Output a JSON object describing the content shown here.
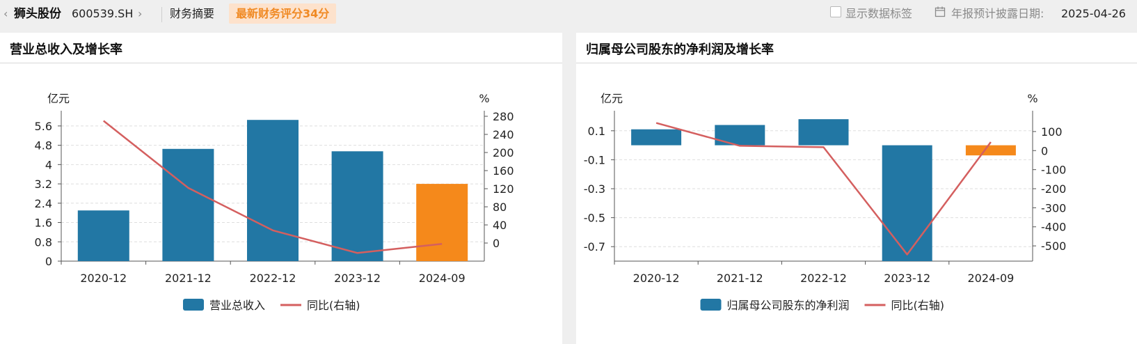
{
  "header": {
    "back_glyph": "‹",
    "stock_name": "狮头股份",
    "stock_code": "600539.SH",
    "forward_glyph": "›",
    "nav_label": "财务摘要",
    "score_badge": "最新财务评分34分",
    "show_labels_text": "显示数据标签",
    "show_labels_checked": false,
    "disclosure_label": "年报预计披露日期:",
    "disclosure_date": "2025-04-26",
    "icons": [
      "chevron-left-icon",
      "chevron-right-icon",
      "calendar-icon"
    ]
  },
  "colors": {
    "primary": "#2277a4",
    "latest": "#f5891b",
    "line": "#d45f5f",
    "grid": "#dedede"
  },
  "panels": [
    {
      "title": "营业总收入及增长率"
    },
    {
      "title": "归属母公司股东的净利润及增长率"
    }
  ],
  "chart_data": [
    {
      "type": "bar",
      "title": "营业总收入及增长率",
      "categories": [
        "2020-12",
        "2021-12",
        "2022-12",
        "2023-12",
        "2024-09"
      ],
      "series": [
        {
          "name": "营业总收入",
          "type": "bar",
          "axis": "left",
          "values": [
            2.1,
            4.65,
            5.85,
            4.55,
            3.2
          ]
        },
        {
          "name": "同比(右轴)",
          "type": "line",
          "axis": "right",
          "values": [
            270,
            122,
            28,
            -22,
            -2
          ]
        }
      ],
      "left_axis": {
        "unit": "亿元",
        "range": [
          0,
          6
        ],
        "ticks": [
          0,
          0.8,
          1.6,
          2.4,
          3.2,
          4,
          4.8,
          5.6
        ]
      },
      "right_axis": {
        "unit": "%",
        "range": [
          -40,
          280
        ],
        "ticks": [
          0,
          40,
          80,
          120,
          160,
          200,
          240,
          280
        ]
      },
      "grid": true,
      "legend": "bottom-center"
    },
    {
      "type": "bar",
      "title": "归属母公司股东的净利润及增长率",
      "categories": [
        "2020-12",
        "2021-12",
        "2022-12",
        "2023-12",
        "2024-09"
      ],
      "series": [
        {
          "name": "归属母公司股东的净利润",
          "type": "bar",
          "axis": "left",
          "values": [
            0.11,
            0.14,
            0.18,
            -0.8,
            -0.07
          ]
        },
        {
          "name": "同比(右轴)",
          "type": "line",
          "axis": "right",
          "values": [
            145,
            25,
            18,
            -545,
            45
          ]
        }
      ],
      "left_axis": {
        "unit": "亿元",
        "range": [
          -0.8,
          0.2
        ],
        "ticks": [
          0.1,
          -0.1,
          -0.3,
          -0.5,
          -0.7
        ]
      },
      "right_axis": {
        "unit": "%",
        "range": [
          -580,
          180
        ],
        "ticks": [
          100,
          0,
          -100,
          -200,
          -300,
          -400,
          -500
        ]
      },
      "grid": true,
      "legend": "bottom-center"
    }
  ]
}
